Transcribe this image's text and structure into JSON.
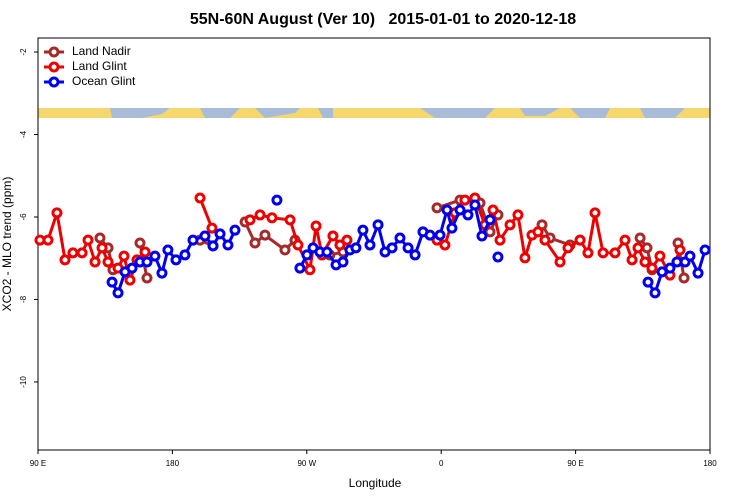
{
  "chart_data": {
    "type": "line",
    "title": "55N-60N August (Ver 10)   2015-01-01 to 2020-12-18",
    "xlabel": "Longitude",
    "ylabel": "XCO2 - MLO trend (ppm)",
    "xlim": [
      90,
      540
    ],
    "ylim": [
      -11.65,
      -1.66
    ],
    "xticks": [
      {
        "value": 90,
        "label": "90 E"
      },
      {
        "value": 180,
        "label": "180"
      },
      {
        "value": 270,
        "label": "90 W"
      },
      {
        "value": 360,
        "label": "0"
      },
      {
        "value": 450,
        "label": "90 E"
      },
      {
        "value": 540,
        "label": "180"
      }
    ],
    "yticks": [
      -2,
      -4,
      -6,
      -8,
      -10
    ],
    "legend": "upper left",
    "series": [
      {
        "name": "Land Nadir",
        "color": "#a52a2a",
        "x": [
          131.5,
          136.9,
          140.2,
          null,
          158.3,
          163.0,
          null,
          198.5,
          207.2,
          null,
          228.7,
          235.3,
          242.0,
          255.4,
          262.1,
          null,
          285.4,
          294.2,
          null,
          357.2,
          372.6,
          386.0,
          392.7,
          398.0,
          null,
          427.5,
          432.9,
          446.3,
          453.0,
          null,
          493.2,
          497.8,
          501.2,
          null,
          518.6,
          522.6
        ],
        "values": [
          -6.51,
          -6.75,
          -7.28,
          null,
          -6.63,
          -7.48,
          null,
          -6.56,
          -6.7,
          null,
          -6.12,
          -6.63,
          -6.44,
          -6.8,
          -6.56,
          null,
          -6.92,
          -6.85,
          null,
          -5.78,
          -5.59,
          -5.66,
          -6.36,
          -5.95,
          null,
          -6.19,
          -6.51,
          -6.68,
          -6.56,
          null,
          -6.51,
          -6.75,
          -7.28,
          null,
          -6.63,
          -7.48
        ]
      },
      {
        "name": "Land Glint",
        "color": "#ee0000",
        "x": [
          91.3,
          96.7,
          102.7,
          108.1,
          113.4,
          119.5,
          123.5,
          128.2,
          132.9,
          136.9,
          143.6,
          147.6,
          151.6,
          156.3,
          161.7,
          null,
          198.5,
          206.5,
          null,
          232.0,
          238.7,
          246.7,
          258.8,
          264.1,
          272.1,
          276.2,
          280.2,
          287.5,
          292.2,
          296.9,
          null,
          357.2,
          362.5,
          369.2,
          375.9,
          382.6,
          389.3,
          394.7,
          399.4,
          406.1,
          411.4,
          416.1,
          420.8,
          424.8,
          429.5,
          439.6,
          444.9,
          453.0,
          458.3,
          463.0,
          468.4,
          476.4,
          483.1,
          487.8,
          491.8,
          496.5,
          501.2,
          506.5,
          513.2,
          519.9
        ],
        "values": [
          -6.56,
          -6.56,
          -5.9,
          -7.04,
          -6.87,
          -6.87,
          -6.56,
          -7.09,
          -6.75,
          -7.09,
          -7.24,
          -6.95,
          -7.53,
          -7.04,
          -6.85,
          null,
          -5.54,
          -6.27,
          null,
          -6.07,
          -5.95,
          -6.02,
          -6.07,
          -6.68,
          -7.28,
          -6.22,
          -6.92,
          -6.46,
          -6.68,
          -6.56,
          null,
          -6.56,
          -6.68,
          -5.9,
          -5.59,
          -5.54,
          -6.19,
          -5.83,
          -6.56,
          -6.19,
          -5.95,
          -6.99,
          -6.44,
          -6.36,
          -6.56,
          -7.09,
          -6.75,
          -6.56,
          -6.87,
          -5.9,
          -6.87,
          -6.87,
          -6.56,
          -7.04,
          -6.75,
          -7.09,
          -7.24,
          -6.95,
          -7.41,
          -6.8
        ]
      },
      {
        "name": "Ocean Glint",
        "color": "#0000ee",
        "x": [
          139.6,
          143.6,
          148.3,
          153.0,
          158.3,
          163.0,
          168.3,
          173.0,
          177.0,
          182.4,
          188.4,
          193.8,
          201.8,
          207.2,
          211.9,
          217.2,
          221.9,
          null,
          250.0,
          null,
          265.4,
          270.1,
          274.2,
          278.8,
          283.5,
          289.6,
          294.2,
          298.9,
          302.9,
          307.6,
          312.3,
          317.7,
          322.4,
          327.1,
          332.4,
          337.8,
          342.5,
          347.8,
          352.5,
          359.2,
          363.9,
          367.2,
          372.6,
          377.9,
          382.6,
          387.3,
          392.7,
          null,
          398.0,
          null,
          498.5,
          503.2,
          507.9,
          513.2,
          517.9,
          523.3,
          526.6,
          532.0,
          536.7
        ],
        "values": [
          -7.58,
          -7.84,
          -7.33,
          -7.24,
          -7.09,
          -7.09,
          -6.95,
          -7.36,
          -6.8,
          -7.04,
          -6.92,
          -6.56,
          -6.46,
          -6.7,
          -6.41,
          -6.68,
          -6.32,
          null,
          -5.59,
          null,
          -7.24,
          -6.92,
          -6.75,
          -6.85,
          -6.85,
          -7.16,
          -7.09,
          -6.8,
          -6.75,
          -6.32,
          -6.68,
          -6.19,
          -6.85,
          -6.75,
          -6.51,
          -6.75,
          -6.92,
          -6.36,
          -6.44,
          -6.44,
          -5.83,
          -6.27,
          -5.83,
          -5.95,
          -5.71,
          -6.46,
          -6.07,
          null,
          -6.97,
          null,
          -7.58,
          -7.84,
          -7.33,
          -7.24,
          -7.09,
          -7.09,
          -6.95,
          -7.36,
          -6.8
        ]
      }
    ]
  }
}
